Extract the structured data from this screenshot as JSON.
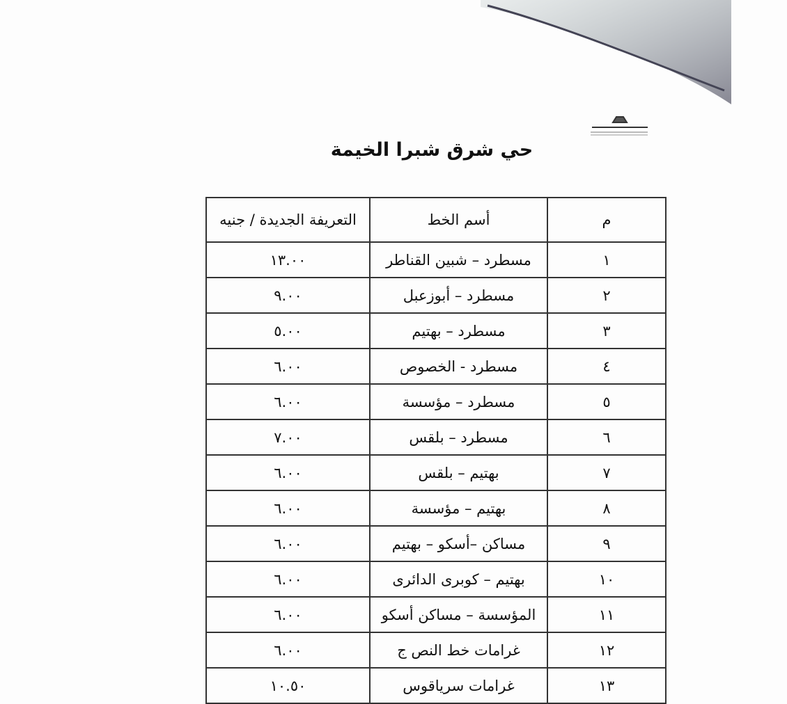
{
  "header": {
    "title": "حي شرق شبرا الخيمة"
  },
  "table": {
    "columns": [
      "م",
      "أسم الخط",
      "التعريفة الجديدة / جنيه"
    ],
    "rows": [
      [
        "١",
        "مسطرد – شبين القناطر",
        "١٣.٠٠"
      ],
      [
        "٢",
        "مسطرد – أبوزعبل",
        "٩.٠٠"
      ],
      [
        "٣",
        "مسطرد – بهتيم",
        "٥.٠٠"
      ],
      [
        "٤",
        "مسطرد - الخصوص",
        "٦.٠٠"
      ],
      [
        "٥",
        "مسطرد – مؤسسة",
        "٦.٠٠"
      ],
      [
        "٦",
        "مسطرد – بلقس",
        "٧.٠٠"
      ],
      [
        "٧",
        "بهتيم – بلقس",
        "٦.٠٠"
      ],
      [
        "٨",
        "بهتيم – مؤسسة",
        "٦.٠٠"
      ],
      [
        "٩",
        "مساكن –أسكو – بهتيم",
        "٦.٠٠"
      ],
      [
        "١٠",
        "بهتيم – كوبرى الدائرى",
        "٦.٠٠"
      ],
      [
        "١١",
        "المؤسسة – مساكن أسكو",
        "٦.٠٠"
      ],
      [
        "١٢",
        "غرامات خط النص ج",
        "٦.٠٠"
      ],
      [
        "١٣",
        "غرامات سرياقوس",
        "١٠.٥٠"
      ]
    ]
  }
}
